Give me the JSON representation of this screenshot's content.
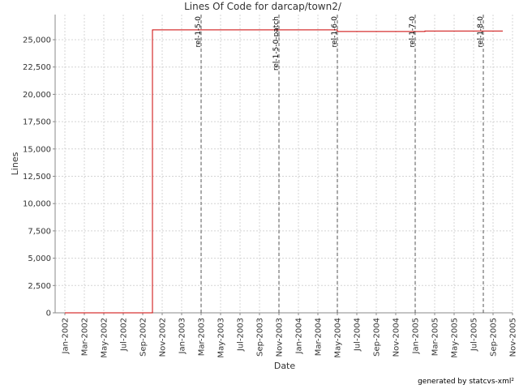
{
  "chart_data": {
    "type": "line",
    "title": "Lines Of Code for darcap/town2/",
    "x_label": "Date",
    "y_label": "Lines",
    "footer": "generated by statcvs-xml²",
    "series": [
      {
        "name": "Lines",
        "color": "#cc0000",
        "x": [
          "2002-01",
          "2002-10",
          "2002-10",
          "2004-05",
          "2004-05",
          "2005-02",
          "2005-02",
          "2005-10"
        ],
        "values": [
          0,
          0,
          25900,
          25900,
          25750,
          25750,
          25800,
          25800
        ]
      }
    ],
    "tags": [
      {
        "name": "rel-1-5-0",
        "x": "2003-03"
      },
      {
        "name": "rel-1-5-0-patch",
        "x": "2003-11"
      },
      {
        "name": "rel-1-6-0",
        "x": "2004-05"
      },
      {
        "name": "rel-1-7-0",
        "x": "2005-01"
      },
      {
        "name": "rel-1-8-0",
        "x": "2005-08"
      }
    ],
    "xlim": [
      "2001-12",
      "2005-11"
    ],
    "xticks": [
      {
        "value": "2002-01",
        "label": "Jan-2002"
      },
      {
        "value": "2002-03",
        "label": "Mar-2002"
      },
      {
        "value": "2002-05",
        "label": "May-2002"
      },
      {
        "value": "2002-07",
        "label": "Jul-2002"
      },
      {
        "value": "2002-09",
        "label": "Sep-2002"
      },
      {
        "value": "2002-11",
        "label": "Nov-2002"
      },
      {
        "value": "2003-01",
        "label": "Jan-2003"
      },
      {
        "value": "2003-03",
        "label": "Mar-2003"
      },
      {
        "value": "2003-05",
        "label": "May-2003"
      },
      {
        "value": "2003-07",
        "label": "Jul-2003"
      },
      {
        "value": "2003-09",
        "label": "Sep-2003"
      },
      {
        "value": "2003-11",
        "label": "Nov-2003"
      },
      {
        "value": "2004-01",
        "label": "Jan-2004"
      },
      {
        "value": "2004-03",
        "label": "Mar-2004"
      },
      {
        "value": "2004-05",
        "label": "May-2004"
      },
      {
        "value": "2004-07",
        "label": "Jul-2004"
      },
      {
        "value": "2004-09",
        "label": "Sep-2004"
      },
      {
        "value": "2004-11",
        "label": "Nov-2004"
      },
      {
        "value": "2005-01",
        "label": "Jan-2005"
      },
      {
        "value": "2005-03",
        "label": "Mar-2005"
      },
      {
        "value": "2005-05",
        "label": "May-2005"
      },
      {
        "value": "2005-07",
        "label": "Jul-2005"
      },
      {
        "value": "2005-09",
        "label": "Sep-2005"
      },
      {
        "value": "2005-11",
        "label": "Nov-2005"
      }
    ],
    "ylim": [
      0,
      27300
    ],
    "yticks": [
      0,
      {
        "value": 2500,
        "label": "2,500"
      },
      {
        "value": 5000,
        "label": "5,000"
      },
      {
        "value": 7500,
        "label": "7,500"
      },
      {
        "value": 10000,
        "label": "10,000"
      },
      {
        "value": 12500,
        "label": "12,500"
      },
      {
        "value": 15000,
        "label": "15,000"
      },
      {
        "value": 17500,
        "label": "17,500"
      },
      {
        "value": 20000,
        "label": "20,000"
      },
      {
        "value": 22500,
        "label": "22,500"
      },
      {
        "value": 25000,
        "label": "25,000"
      }
    ],
    "grid": true
  }
}
